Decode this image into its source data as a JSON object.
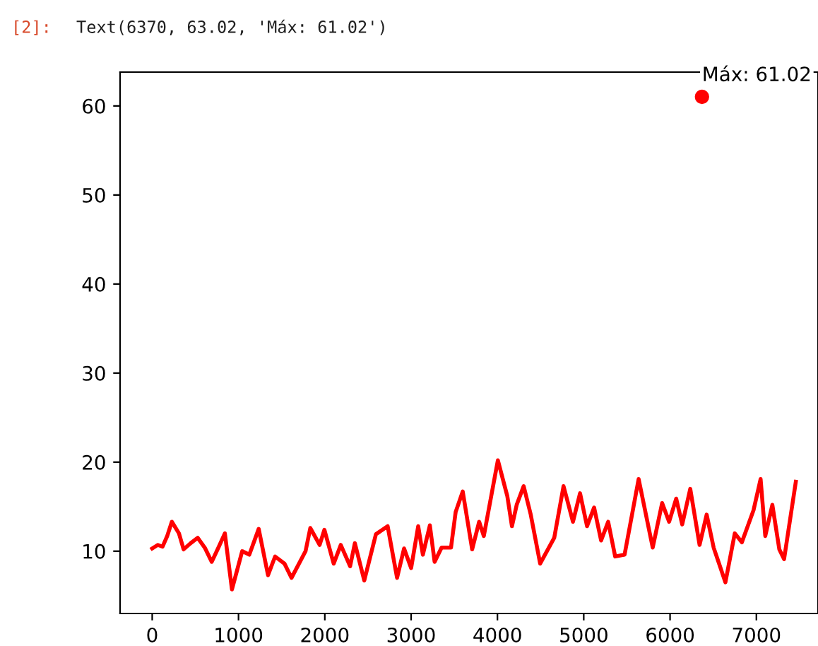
{
  "chart_data": {
    "type": "line",
    "xlim": [
      -372,
      7714
    ],
    "ylim": [
      3.0,
      63.8
    ],
    "xticks": [
      0,
      1000,
      2000,
      3000,
      4000,
      5000,
      6000,
      7000
    ],
    "yticks": [
      10,
      20,
      30,
      40,
      50,
      60
    ],
    "grid": false,
    "legend": false,
    "series": [
      {
        "color": "#ff0000",
        "x": [
          0,
          65,
          120,
          174,
          228,
          310,
          364,
          446,
          527,
          609,
          690,
          772,
          842,
          924,
          1043,
          1125,
          1234,
          1342,
          1424,
          1533,
          1614,
          1777,
          1832,
          1940,
          1995,
          2103,
          2185,
          2293,
          2348,
          2457,
          2592,
          2728,
          2837,
          2918,
          3000,
          3082,
          3136,
          3217,
          3272,
          3353,
          3462,
          3516,
          3598,
          3707,
          3788,
          3842,
          4005,
          4114,
          4168,
          4223,
          4304,
          4386,
          4495,
          4658,
          4766,
          4875,
          4957,
          5038,
          5120,
          5201,
          5283,
          5364,
          5473,
          5636,
          5799,
          5908,
          5989,
          6071,
          6141,
          6234,
          6342,
          6424,
          6505,
          6641,
          6750,
          6832,
          6967,
          7049,
          7103,
          7185,
          7266,
          7321,
          7457
        ],
        "values": [
          10.3,
          10.7,
          10.5,
          11.7,
          13.3,
          12,
          10.2,
          10.9,
          11.5,
          10.4,
          8.8,
          10.5,
          12,
          5.7,
          10,
          9.6,
          12.5,
          7.3,
          9.4,
          8.6,
          7,
          10,
          12.6,
          10.7,
          12.4,
          8.6,
          10.7,
          8.3,
          10.9,
          6.7,
          11.9,
          12.8,
          7,
          10.3,
          8.1,
          12.8,
          9.6,
          12.9,
          8.8,
          10.4,
          10.4,
          14.4,
          16.7,
          10.2,
          13.3,
          11.7,
          20.2,
          16.2,
          12.8,
          15.2,
          17.3,
          14.1,
          8.6,
          11.5,
          17.3,
          13.3,
          16.5,
          12.8,
          14.9,
          11.2,
          13.3,
          9.4,
          9.6,
          18.1,
          10.4,
          15.4,
          13.3,
          15.9,
          13,
          17,
          10.7,
          14.1,
          10.4,
          6.5,
          12,
          11,
          14.6,
          18.1,
          11.7,
          15.2,
          10.2,
          9.1,
          17.8
        ]
      },
      {
        "type": "scatter",
        "color": "#ff0000",
        "marker": "circle",
        "x": [
          6370
        ],
        "values": [
          61.02
        ],
        "value_labels": [
          "Máx: 61.02"
        ]
      }
    ],
    "annotations": [
      "[2]:",
      "Text(6370, 63.02, 'Máx: 61.02')"
    ]
  }
}
